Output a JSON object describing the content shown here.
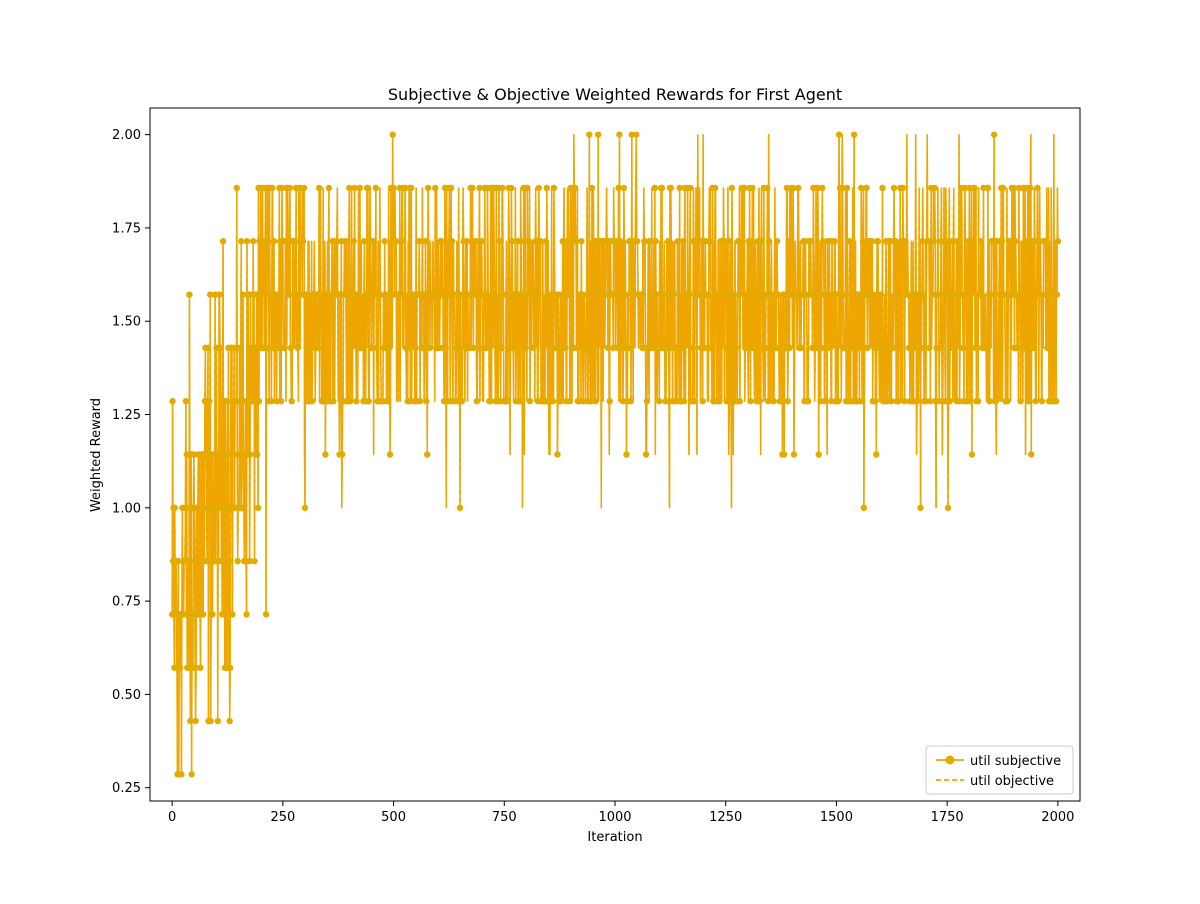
{
  "chart_data": {
    "type": "line",
    "title": "Subjective & Objective Weighted Rewards for First Agent",
    "xlabel": "Iteration",
    "ylabel": "Weighted Reward",
    "xlim": [
      -50,
      2050
    ],
    "ylim": [
      0.2143,
      2.0714
    ],
    "xticks": [
      0,
      250,
      500,
      750,
      1000,
      1250,
      1500,
      1750,
      2000
    ],
    "xtick_labels": [
      "0",
      "250",
      "500",
      "750",
      "1000",
      "1250",
      "1500",
      "1750",
      "2000"
    ],
    "yticks": [
      0.25,
      0.5,
      0.75,
      1.0,
      1.25,
      1.5,
      1.75,
      2.0
    ],
    "ytick_labels": [
      "0.25",
      "0.50",
      "0.75",
      "1.00",
      "1.25",
      "1.50",
      "1.75",
      "2.00"
    ],
    "grid": false,
    "legend_position": "lower right",
    "x_range": [
      0,
      2000
    ],
    "series": [
      {
        "name": "util subjective",
        "color": "#e3ab00",
        "style": "solid-with-markers",
        "values_summary": "highly oscillating rewards in multiples of 1/7 (0.2857 to 2.0), starting low and noisy near 0-200 then settling mostly between 1.14 and 1.86"
      },
      {
        "name": "util objective",
        "color": "#f0a500",
        "style": "dashed",
        "values_summary": "overlapping subjective series"
      }
    ]
  }
}
